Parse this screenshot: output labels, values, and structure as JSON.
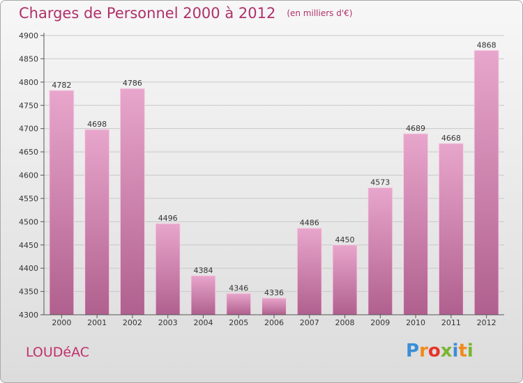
{
  "title": "Charges de Personnel 2000 à 2012",
  "subtitle": "(en milliers d'€)",
  "commune": "LOUDéAC",
  "logo": {
    "letters": [
      "P",
      "r",
      "o",
      "x",
      "i",
      "t",
      "i"
    ],
    "colors": [
      "#3a8fd6",
      "#f08a1c",
      "#e8342a",
      "#7ab530",
      "#3a8fd6",
      "#f08a1c",
      "#7ab530"
    ]
  },
  "colors": {
    "bar_top": "#e8a6cc",
    "bar_bottom": "#b0608e",
    "grid": "#c8c8c8",
    "title": "#b0306a"
  },
  "chart_data": {
    "type": "bar",
    "categories": [
      "2000",
      "2001",
      "2002",
      "2003",
      "2004",
      "2005",
      "2006",
      "2007",
      "2008",
      "2009",
      "2010",
      "2011",
      "2012"
    ],
    "values": [
      4782,
      4698,
      4786,
      4496,
      4384,
      4346,
      4336,
      4486,
      4450,
      4573,
      4689,
      4668,
      4868
    ],
    "ylim": [
      4300,
      4900
    ],
    "yticks": [
      4300,
      4350,
      4400,
      4450,
      4500,
      4550,
      4600,
      4650,
      4700,
      4750,
      4800,
      4850,
      4900
    ],
    "grid": true,
    "xlabel": "",
    "ylabel": ""
  }
}
